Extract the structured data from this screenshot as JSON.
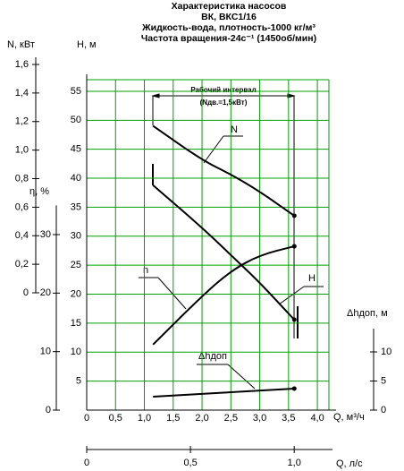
{
  "chart_data": {
    "type": "line",
    "title_lines": [
      "Характеристика насосов",
      "ВК, ВКС1/16",
      "Жидкость-вода, плотность-1000 кг/м³",
      "Частота вращения-24с⁻¹ (1450об/мин)"
    ],
    "x_label": "Q, м³/ч",
    "x2_label": "Q, л/с",
    "y_label": "H, м",
    "n_label": "N, кВт",
    "eta_label": "η, %",
    "y2_label": "Δhдоп, м",
    "interval_label": "Рабочий интервал",
    "interval_note": "(Nдв.=1,5кВт)",
    "grid": true,
    "grid_color": "#00a000",
    "xlim": [
      0,
      4.2
    ],
    "xticks": [
      0,
      {
        "value": 0.5,
        "label": "0,5"
      },
      {
        "value": 1.0,
        "label": "1,0"
      },
      {
        "value": 1.5,
        "label": "1,5"
      },
      {
        "value": 2.0,
        "label": "2,0"
      },
      {
        "value": 2.5,
        "label": "2,5"
      },
      {
        "value": 3.0,
        "label": "3,0"
      },
      {
        "value": 3.5,
        "label": "3,5"
      },
      {
        "value": 4.0,
        "label": "4,0"
      }
    ],
    "x2lim": [
      0,
      1.15
    ],
    "x2ticks": [
      0,
      {
        "value": 0.5,
        "label": "0,5"
      },
      {
        "value": 1.0,
        "label": "1,0"
      }
    ],
    "ylim": [
      0,
      57
    ],
    "yticks": [
      5,
      10,
      15,
      20,
      25,
      30,
      35,
      40,
      45,
      50,
      55
    ],
    "nlim": [
      0,
      1.65
    ],
    "nticks": [
      0,
      {
        "value": 0.2,
        "label": "0,2"
      },
      {
        "value": 0.4,
        "label": "0,4"
      },
      {
        "value": 0.6,
        "label": "0,6"
      },
      {
        "value": 0.8,
        "label": "0,8"
      },
      {
        "value": 1.0,
        "label": "1,0"
      },
      {
        "value": 1.2,
        "label": "1,2"
      },
      {
        "value": 1.4,
        "label": "1,4"
      },
      {
        "value": 1.6,
        "label": "1,6"
      }
    ],
    "etalim": [
      0,
      35
    ],
    "etaticks": [
      0,
      10,
      20,
      30
    ],
    "y2lim": [
      0,
      14
    ],
    "y2ticks": [
      0,
      5,
      10
    ],
    "series": [
      {
        "name": "N",
        "axis": "n",
        "color": "#000000",
        "x": [
          1.15,
          2.0,
          2.5,
          3.0,
          3.6
        ],
        "values": [
          1.17,
          0.93,
          0.83,
          0.71,
          0.54
        ]
      },
      {
        "name": "H",
        "axis": "y",
        "color": "#000000",
        "x": [
          1.15,
          2.0,
          2.6,
          3.0,
          3.6
        ],
        "values": [
          38.8,
          31.5,
          25.8,
          22,
          15.6
        ]
      },
      {
        "name": "n",
        "axis": "eta",
        "color": "#000000",
        "x": [
          1.15,
          2.0,
          2.5,
          3.0,
          3.6
        ],
        "values": [
          11.2,
          19.5,
          23.8,
          26.5,
          28.0
        ]
      },
      {
        "name": "Δhдоп",
        "axis": "y2",
        "color": "#000000",
        "x": [
          1.15,
          3.6
        ],
        "values": [
          2.3,
          3.7
        ]
      }
    ]
  }
}
